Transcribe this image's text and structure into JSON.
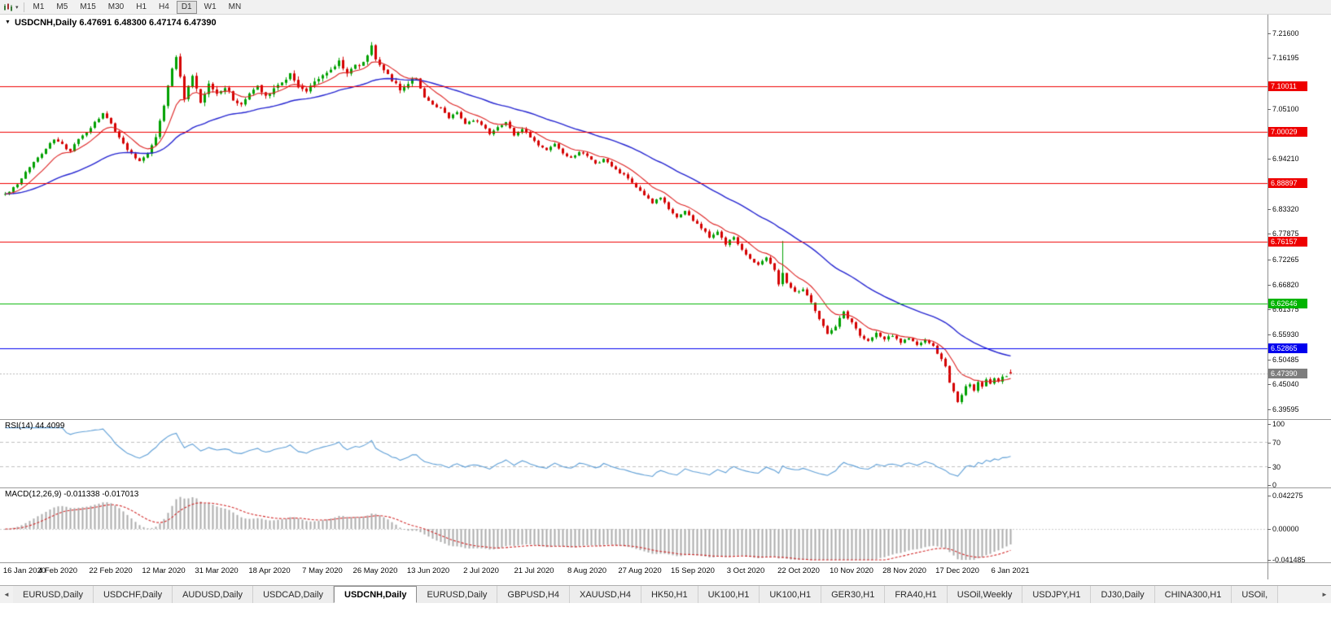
{
  "toolbar": {
    "timeframes": [
      {
        "label": "M1",
        "active": false
      },
      {
        "label": "M5",
        "active": false
      },
      {
        "label": "M15",
        "active": false
      },
      {
        "label": "M30",
        "active": false
      },
      {
        "label": "H1",
        "active": false
      },
      {
        "label": "H4",
        "active": false
      },
      {
        "label": "D1",
        "active": true
      },
      {
        "label": "W1",
        "active": false
      },
      {
        "label": "MN",
        "active": false
      }
    ]
  },
  "main_chart": {
    "title": "USDCNH,Daily 6.47691 6.48300 6.47174 6.47390"
  },
  "rsi_panel": {
    "title": "RSI(14) 44.4099"
  },
  "macd_panel": {
    "title": "MACD(12,26,9) -0.011338 -0.017013"
  },
  "tabbar": {
    "tabs": [
      {
        "label": "EURUSD,Daily",
        "active": false
      },
      {
        "label": "USDCHF,Daily",
        "active": false
      },
      {
        "label": "AUDUSD,Daily",
        "active": false
      },
      {
        "label": "USDCAD,Daily",
        "active": false
      },
      {
        "label": "USDCNH,Daily",
        "active": true
      },
      {
        "label": "EURUSD,Daily",
        "active": false
      },
      {
        "label": "GBPUSD,H4",
        "active": false
      },
      {
        "label": "XAUUSD,H4",
        "active": false
      },
      {
        "label": "HK50,H1",
        "active": false
      },
      {
        "label": "UK100,H1",
        "active": false
      },
      {
        "label": "UK100,H1",
        "active": false
      },
      {
        "label": "GER30,H1",
        "active": false
      },
      {
        "label": "FRA40,H1",
        "active": false
      },
      {
        "label": "USOil,Weekly",
        "active": false
      },
      {
        "label": "USDJPY,H1",
        "active": false
      },
      {
        "label": "DJ30,Daily",
        "active": false
      },
      {
        "label": "CHINA300,H1",
        "active": false
      },
      {
        "label": "USOil,",
        "active": false
      }
    ]
  },
  "chart_data": {
    "type": "candlestick",
    "symbol": "USDCNH",
    "timeframe": "Daily",
    "bars": 248,
    "seed": 42,
    "price_view": [
      6.375,
      7.256
    ],
    "y_ticks": [
      "7.21600",
      "7.16195",
      "7.05100",
      "6.94210",
      "6.83320",
      "6.77875",
      "6.72265",
      "6.66820",
      "6.61375",
      "6.55930",
      "6.50485",
      "6.45040",
      "6.39595"
    ],
    "levels": [
      {
        "value": 7.10011,
        "label": "7.10011",
        "color": "#ee0000"
      },
      {
        "value": 7.00029,
        "label": "7.00029",
        "color": "#ee0000"
      },
      {
        "value": 6.88897,
        "label": "6.88897",
        "color": "#ee0000"
      },
      {
        "value": 6.76157,
        "label": "6.76157",
        "color": "#ee0000"
      },
      {
        "value": 6.62646,
        "label": "6.62646",
        "color": "#00b400"
      },
      {
        "value": 6.52865,
        "label": "6.52865",
        "color": "#0000ee"
      }
    ],
    "bid": {
      "value": 6.4739,
      "label": "6.47390",
      "color": "#7d7d7d"
    },
    "last_bar": {
      "open": 6.47691,
      "high": 6.483,
      "low": 6.47174,
      "close": 6.4739
    },
    "spike_bar": {
      "index": 191,
      "high": 6.763
    },
    "up_color": "#00a000",
    "down_color": "#d40000",
    "ma_fast": {
      "period": 10,
      "color": "#dd2222"
    },
    "ma_slow": {
      "period": 40,
      "color": "#2424d0"
    },
    "close_anchors": [
      [
        0,
        6.865
      ],
      [
        3,
        6.885
      ],
      [
        6,
        6.925
      ],
      [
        9,
        6.955
      ],
      [
        12,
        6.985
      ],
      [
        14,
        6.972
      ],
      [
        16,
        6.958
      ],
      [
        18,
        6.985
      ],
      [
        20,
        7.0
      ],
      [
        22,
        7.02
      ],
      [
        24,
        7.04
      ],
      [
        26,
        7.018
      ],
      [
        28,
        6.988
      ],
      [
        31,
        6.952
      ],
      [
        33,
        6.938
      ],
      [
        35,
        6.955
      ],
      [
        37,
        6.99
      ],
      [
        39,
        7.06
      ],
      [
        41,
        7.14
      ],
      [
        42,
        7.163
      ],
      [
        44,
        7.075
      ],
      [
        46,
        7.12
      ],
      [
        48,
        7.062
      ],
      [
        50,
        7.103
      ],
      [
        52,
        7.082
      ],
      [
        54,
        7.1
      ],
      [
        56,
        7.072
      ],
      [
        58,
        7.058
      ],
      [
        60,
        7.085
      ],
      [
        62,
        7.1
      ],
      [
        64,
        7.08
      ],
      [
        66,
        7.095
      ],
      [
        68,
        7.108
      ],
      [
        70,
        7.128
      ],
      [
        72,
        7.1
      ],
      [
        74,
        7.088
      ],
      [
        76,
        7.11
      ],
      [
        78,
        7.125
      ],
      [
        80,
        7.135
      ],
      [
        82,
        7.155
      ],
      [
        84,
        7.128
      ],
      [
        86,
        7.145
      ],
      [
        88,
        7.15
      ],
      [
        90,
        7.188
      ],
      [
        91,
        7.162
      ],
      [
        93,
        7.135
      ],
      [
        95,
        7.115
      ],
      [
        97,
        7.09
      ],
      [
        99,
        7.108
      ],
      [
        101,
        7.118
      ],
      [
        103,
        7.075
      ],
      [
        105,
        7.058
      ],
      [
        107,
        7.052
      ],
      [
        109,
        7.032
      ],
      [
        111,
        7.045
      ],
      [
        113,
        7.018
      ],
      [
        115,
        7.025
      ],
      [
        117,
        7.018
      ],
      [
        119,
        6.998
      ],
      [
        121,
        7.012
      ],
      [
        123,
        7.022
      ],
      [
        125,
        6.995
      ],
      [
        127,
        7.005
      ],
      [
        129,
        6.99
      ],
      [
        131,
        6.972
      ],
      [
        133,
        6.96
      ],
      [
        135,
        6.975
      ],
      [
        137,
        6.952
      ],
      [
        139,
        6.942
      ],
      [
        141,
        6.955
      ],
      [
        143,
        6.948
      ],
      [
        145,
        6.93
      ],
      [
        147,
        6.942
      ],
      [
        149,
        6.925
      ],
      [
        151,
        6.912
      ],
      [
        153,
        6.9
      ],
      [
        155,
        6.878
      ],
      [
        157,
        6.862
      ],
      [
        159,
        6.845
      ],
      [
        161,
        6.858
      ],
      [
        163,
        6.832
      ],
      [
        165,
        6.815
      ],
      [
        167,
        6.828
      ],
      [
        169,
        6.808
      ],
      [
        171,
        6.792
      ],
      [
        173,
        6.77
      ],
      [
        175,
        6.785
      ],
      [
        177,
        6.755
      ],
      [
        179,
        6.772
      ],
      [
        181,
        6.742
      ],
      [
        183,
        6.725
      ],
      [
        185,
        6.712
      ],
      [
        187,
        6.728
      ],
      [
        189,
        6.702
      ],
      [
        190,
        6.668
      ],
      [
        191,
        6.695
      ],
      [
        192,
        6.672
      ],
      [
        194,
        6.655
      ],
      [
        196,
        6.655
      ],
      [
        198,
        6.632
      ],
      [
        200,
        6.592
      ],
      [
        202,
        6.562
      ],
      [
        204,
        6.578
      ],
      [
        206,
        6.608
      ],
      [
        208,
        6.585
      ],
      [
        210,
        6.558
      ],
      [
        212,
        6.545
      ],
      [
        214,
        6.562
      ],
      [
        216,
        6.548
      ],
      [
        218,
        6.558
      ],
      [
        220,
        6.542
      ],
      [
        222,
        6.552
      ],
      [
        224,
        6.535
      ],
      [
        226,
        6.548
      ],
      [
        228,
        6.532
      ],
      [
        230,
        6.505
      ],
      [
        231,
        6.488
      ],
      [
        232,
        6.455
      ],
      [
        233,
        6.435
      ],
      [
        234,
        6.414
      ],
      [
        235,
        6.425
      ],
      [
        236,
        6.445
      ],
      [
        237,
        6.452
      ],
      [
        238,
        6.435
      ],
      [
        239,
        6.455
      ],
      [
        240,
        6.445
      ],
      [
        241,
        6.462
      ],
      [
        242,
        6.45
      ],
      [
        243,
        6.466
      ],
      [
        244,
        6.455
      ],
      [
        245,
        6.47
      ],
      [
        246,
        6.468
      ],
      [
        247,
        6.474
      ]
    ],
    "x_labels": [
      "16 Jan 2020",
      "4 Feb 2020",
      "22 Feb 2020",
      "12 Mar 2020",
      "31 Mar 2020",
      "18 Apr 2020",
      "7 May 2020",
      "26 May 2020",
      "13 Jun 2020",
      "2 Jul 2020",
      "21 Jul 2020",
      "8 Aug 2020",
      "27 Aug 2020",
      "15 Sep 2020",
      "3 Oct 2020",
      "22 Oct 2020",
      "10 Nov 2020",
      "28 Nov 2020",
      "17 Dec 2020",
      "6 Jan 2021"
    ],
    "label_every_bars": 13,
    "rsi": {
      "period": 14,
      "current": "44.4099",
      "color": "#5f9fd6",
      "guide_levels": [
        70,
        30
      ],
      "axis": [
        "100",
        "70",
        "30",
        "0"
      ]
    },
    "macd": {
      "fast": 12,
      "slow": 26,
      "signal": 9,
      "values": "-0.011338 -0.017013",
      "hist_color": "#ababab",
      "signal_color": "#d22a2a",
      "axis": [
        {
          "v": 0.042275,
          "label": "0.042275"
        },
        {
          "v": 0.0,
          "label": "0.00000"
        },
        {
          "v": -0.041485,
          "label": "-0.041485"
        }
      ]
    }
  }
}
